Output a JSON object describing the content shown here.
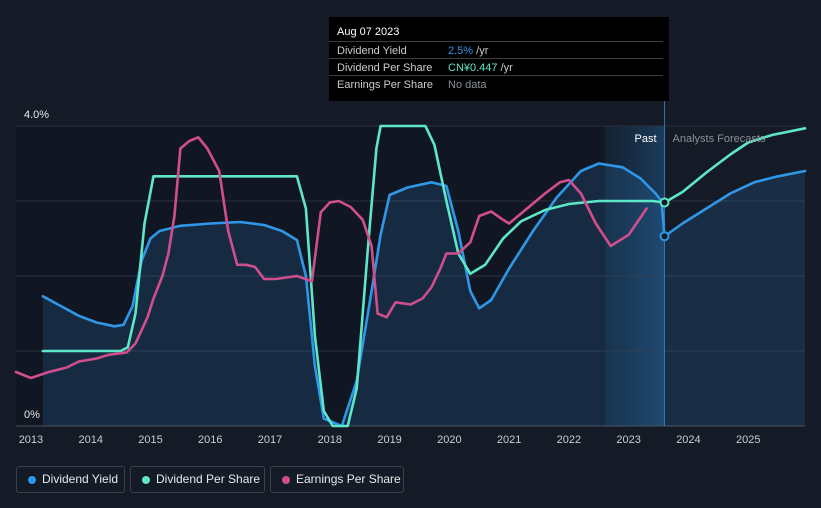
{
  "tooltip": {
    "date": "Aug 07 2023",
    "rows": [
      {
        "label": "Dividend Yield",
        "value": "2.5%",
        "unit": " /yr",
        "color": "#2f97e8"
      },
      {
        "label": "Dividend Per Share",
        "value": "CN¥0.447",
        "unit": " /yr",
        "color": "#5ee6c9"
      },
      {
        "label": "Earnings Per Share",
        "value": "No data",
        "unit": "",
        "color": "#8a8f98"
      }
    ]
  },
  "legend": [
    {
      "label": "Dividend Yield",
      "color": "#2f97e8"
    },
    {
      "label": "Dividend Per Share",
      "color": "#5ee6c9"
    },
    {
      "label": "Earnings Per Share",
      "color": "#d14e8c"
    }
  ],
  "chart_data": {
    "type": "line",
    "y_tick_labels": [
      "4.0%",
      "0%"
    ],
    "ylim": [
      0,
      4.0
    ],
    "xlim": [
      2012.75,
      2025.95
    ],
    "x_ticks": [
      2013,
      2014,
      2015,
      2016,
      2017,
      2018,
      2019,
      2020,
      2021,
      2022,
      2023,
      2024,
      2025
    ],
    "region_labels": {
      "past": "Past",
      "forecast": "Analysts Forecasts"
    },
    "past_region": [
      2022.6,
      2023.6
    ],
    "marker_x": 2023.6,
    "series": [
      {
        "name": "Dividend Yield",
        "color": "#2f97e8",
        "fill": true,
        "points": [
          [
            2013.2,
            1.73
          ],
          [
            2013.5,
            1.6
          ],
          [
            2013.8,
            1.47
          ],
          [
            2014.1,
            1.38
          ],
          [
            2014.4,
            1.33
          ],
          [
            2014.55,
            1.35
          ],
          [
            2014.7,
            1.6
          ],
          [
            2014.85,
            2.2
          ],
          [
            2015.0,
            2.5
          ],
          [
            2015.15,
            2.6
          ],
          [
            2015.5,
            2.67
          ],
          [
            2016.0,
            2.7
          ],
          [
            2016.5,
            2.72
          ],
          [
            2016.9,
            2.68
          ],
          [
            2017.2,
            2.6
          ],
          [
            2017.45,
            2.48
          ],
          [
            2017.6,
            2.0
          ],
          [
            2017.75,
            0.8
          ],
          [
            2017.9,
            0.1
          ],
          [
            2018.2,
            0.0
          ],
          [
            2018.45,
            0.6
          ],
          [
            2018.7,
            1.8
          ],
          [
            2018.85,
            2.55
          ],
          [
            2019.0,
            3.08
          ],
          [
            2019.3,
            3.18
          ],
          [
            2019.7,
            3.25
          ],
          [
            2019.95,
            3.2
          ],
          [
            2020.15,
            2.6
          ],
          [
            2020.35,
            1.8
          ],
          [
            2020.5,
            1.57
          ],
          [
            2020.7,
            1.68
          ],
          [
            2021.0,
            2.1
          ],
          [
            2021.4,
            2.6
          ],
          [
            2021.8,
            3.05
          ],
          [
            2022.2,
            3.4
          ],
          [
            2022.5,
            3.5
          ],
          [
            2022.9,
            3.45
          ],
          [
            2023.2,
            3.3
          ],
          [
            2023.45,
            3.1
          ],
          [
            2023.55,
            3.0
          ],
          [
            2023.6,
            2.53
          ]
        ]
      },
      {
        "name": "Dividend Yield Forecast",
        "color": "#2f97e8",
        "fill": true,
        "points": [
          [
            2023.6,
            2.53
          ],
          [
            2023.9,
            2.7
          ],
          [
            2024.3,
            2.9
          ],
          [
            2024.7,
            3.1
          ],
          [
            2025.1,
            3.25
          ],
          [
            2025.5,
            3.33
          ],
          [
            2025.95,
            3.4
          ]
        ]
      },
      {
        "name": "Dividend Per Share",
        "color": "#5ee6c9",
        "points": [
          [
            2013.2,
            1.0
          ],
          [
            2014.5,
            1.0
          ],
          [
            2014.62,
            1.05
          ],
          [
            2014.75,
            1.5
          ],
          [
            2014.9,
            2.7
          ],
          [
            2015.05,
            3.33
          ],
          [
            2015.25,
            3.33
          ],
          [
            2017.45,
            3.33
          ],
          [
            2017.6,
            2.9
          ],
          [
            2017.75,
            1.2
          ],
          [
            2017.9,
            0.2
          ],
          [
            2018.05,
            0.0
          ],
          [
            2018.3,
            0.0
          ],
          [
            2018.45,
            0.5
          ],
          [
            2018.65,
            2.5
          ],
          [
            2018.78,
            3.7
          ],
          [
            2018.85,
            4.0
          ],
          [
            2019.6,
            4.0
          ],
          [
            2019.75,
            3.75
          ],
          [
            2019.95,
            3.0
          ],
          [
            2020.15,
            2.3
          ],
          [
            2020.35,
            2.03
          ],
          [
            2020.6,
            2.15
          ],
          [
            2020.9,
            2.5
          ],
          [
            2021.2,
            2.73
          ],
          [
            2021.6,
            2.88
          ],
          [
            2022.0,
            2.96
          ],
          [
            2022.5,
            3.0
          ],
          [
            2023.0,
            3.0
          ],
          [
            2023.4,
            3.0
          ],
          [
            2023.6,
            2.98
          ]
        ]
      },
      {
        "name": "Dividend Per Share Forecast",
        "color": "#5ee6c9",
        "points": [
          [
            2023.6,
            2.98
          ],
          [
            2023.9,
            3.12
          ],
          [
            2024.3,
            3.38
          ],
          [
            2024.7,
            3.62
          ],
          [
            2025.0,
            3.78
          ],
          [
            2025.4,
            3.88
          ],
          [
            2025.95,
            3.97
          ]
        ]
      },
      {
        "name": "Earnings Per Share",
        "color": "#d14e8c",
        "points": [
          [
            2012.75,
            0.72
          ],
          [
            2013.0,
            0.64
          ],
          [
            2013.3,
            0.72
          ],
          [
            2013.6,
            0.78
          ],
          [
            2013.8,
            0.86
          ],
          [
            2014.1,
            0.9
          ],
          [
            2014.3,
            0.95
          ],
          [
            2014.6,
            0.98
          ],
          [
            2014.75,
            1.1
          ],
          [
            2014.95,
            1.45
          ],
          [
            2015.05,
            1.7
          ],
          [
            2015.2,
            2.0
          ],
          [
            2015.3,
            2.3
          ],
          [
            2015.4,
            2.8
          ],
          [
            2015.5,
            3.7
          ],
          [
            2015.65,
            3.8
          ],
          [
            2015.8,
            3.85
          ],
          [
            2015.95,
            3.7
          ],
          [
            2016.15,
            3.4
          ],
          [
            2016.3,
            2.6
          ],
          [
            2016.45,
            2.15
          ],
          [
            2016.6,
            2.15
          ],
          [
            2016.75,
            2.12
          ],
          [
            2016.9,
            1.96
          ],
          [
            2017.1,
            1.96
          ],
          [
            2017.45,
            2.0
          ],
          [
            2017.7,
            1.93
          ],
          [
            2017.85,
            2.85
          ],
          [
            2018.0,
            2.98
          ],
          [
            2018.15,
            3.0
          ],
          [
            2018.35,
            2.92
          ],
          [
            2018.55,
            2.75
          ],
          [
            2018.7,
            2.4
          ],
          [
            2018.8,
            1.5
          ],
          [
            2018.95,
            1.45
          ],
          [
            2019.1,
            1.65
          ],
          [
            2019.35,
            1.62
          ],
          [
            2019.55,
            1.7
          ],
          [
            2019.7,
            1.85
          ],
          [
            2019.85,
            2.1
          ],
          [
            2019.95,
            2.3
          ],
          [
            2020.15,
            2.3
          ],
          [
            2020.35,
            2.45
          ],
          [
            2020.5,
            2.8
          ],
          [
            2020.7,
            2.86
          ],
          [
            2020.9,
            2.75
          ],
          [
            2021.0,
            2.7
          ],
          [
            2021.3,
            2.9
          ],
          [
            2021.6,
            3.1
          ],
          [
            2021.85,
            3.25
          ],
          [
            2022.0,
            3.28
          ],
          [
            2022.2,
            3.1
          ],
          [
            2022.45,
            2.7
          ],
          [
            2022.7,
            2.4
          ],
          [
            2023.0,
            2.55
          ],
          [
            2023.3,
            2.9
          ]
        ]
      }
    ]
  }
}
